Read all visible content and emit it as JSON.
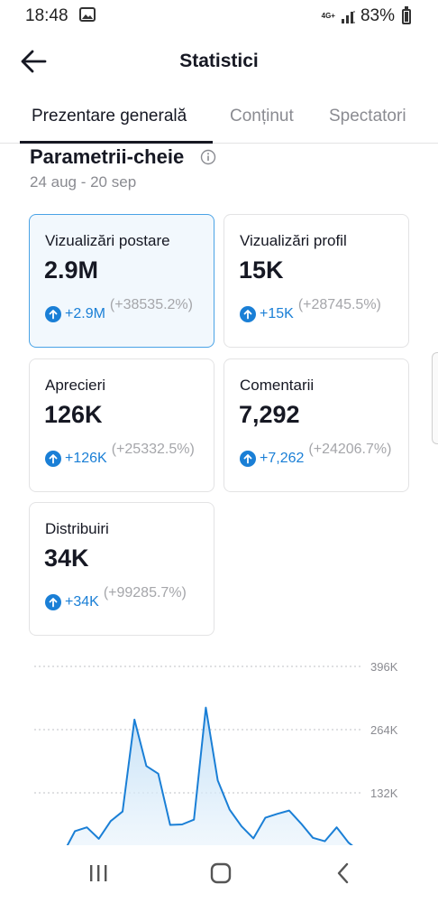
{
  "status_bar": {
    "time": "18:48",
    "network": "4G+",
    "battery": "83%"
  },
  "header": {
    "title": "Statistici"
  },
  "tabs": [
    {
      "label": "Prezentare generală",
      "active": true
    },
    {
      "label": "Conținut",
      "active": false
    },
    {
      "label": "Spectatori",
      "active": false
    }
  ],
  "section": {
    "title": "Parametrii-cheie",
    "date_range": "24 aug - 20 sep"
  },
  "metrics": [
    {
      "label": "Vizualizări postare",
      "value": "2.9M",
      "delta": "+2.9M",
      "percent": "(+38535.2%)",
      "selected": true
    },
    {
      "label": "Vizualizări profil",
      "value": "15K",
      "delta": "+15K",
      "percent": "(+28745.5%)",
      "selected": false
    },
    {
      "label": "Aprecieri",
      "value": "126K",
      "delta": "+126K",
      "percent": "(+25332.5%)",
      "selected": false
    },
    {
      "label": "Comentarii",
      "value": "7,292",
      "delta": "+7,262",
      "percent": "(+24206.7%)",
      "selected": false
    },
    {
      "label": "Distribuiri",
      "value": "34K",
      "delta": "+34K",
      "percent": "(+99285.7%)",
      "selected": false
    }
  ],
  "colors": {
    "accent": "#1a7fd6",
    "selected_border": "#4aa3e6",
    "selected_bg": "#f2f8fd",
    "line": "#1a7fd6",
    "area": "#d6e9f8"
  },
  "chart_data": {
    "type": "area",
    "y_ticks": [
      "396K",
      "264K",
      "132K"
    ],
    "y_tick_values": [
      396000,
      264000,
      132000
    ],
    "ylim": [
      0,
      396000
    ],
    "grid": true,
    "values": [
      5000,
      52000,
      60000,
      36000,
      73000,
      93000,
      285000,
      188000,
      172000,
      65000,
      66000,
      76000,
      310000,
      158000,
      97000,
      62000,
      37000,
      80000,
      88000,
      95000,
      68000,
      38000,
      31000,
      60000,
      28000,
      8000
    ]
  },
  "nav_bar": {
    "buttons": [
      "recent-apps",
      "home",
      "back"
    ]
  }
}
